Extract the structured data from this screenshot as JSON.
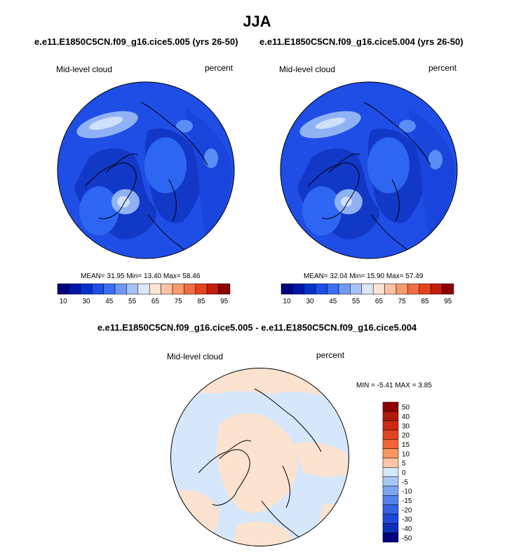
{
  "figure": {
    "season": "JJA",
    "diff_title": "e.e11.E1850C5CN.f09_g16.cice5.005 - e.e11.E1850C5CN.f09_g16.cice5.004"
  },
  "colors": {
    "ocean_left": "#1f4ee6",
    "land_dark": "#1238c8",
    "bright": "#2d66f2",
    "light": "#8fb2f5",
    "lightest": "#cfe0fb",
    "diff_pos": "#fbe3cf",
    "diff_neg": "#d7e7fb"
  },
  "chart_data": [
    {
      "type": "heatmap",
      "projection": "polar-stereographic",
      "title": "e.e11.E1850C5CN.f09_g16.cice5.005 (yrs 26-50)",
      "left_label": "Mid-level cloud",
      "right_label": "percent",
      "stats": "MEAN=  31.95  Min=  13.40  Max=  58.46",
      "colorbar": {
        "colors": [
          "#00007f",
          "#0015a8",
          "#0033cc",
          "#1f4ee6",
          "#3b6ff2",
          "#6f98f4",
          "#a6c2f6",
          "#dbe6f8",
          "#fde5d2",
          "#fbc2a4",
          "#f8996f",
          "#f26d45",
          "#e24420",
          "#c21e0c",
          "#8c0000"
        ],
        "tick_labels": [
          "10",
          "30",
          "45",
          "55",
          "65",
          "75",
          "85",
          "95"
        ]
      }
    },
    {
      "type": "heatmap",
      "projection": "polar-stereographic",
      "title": "e.e11.E1850C5CN.f09_g16.cice5.004 (yrs 26-50)",
      "left_label": "Mid-level cloud",
      "right_label": "percent",
      "stats": "MEAN=  32.04  Min=  15.90  Max=  57.49",
      "colorbar": {
        "colors": [
          "#00007f",
          "#0015a8",
          "#0033cc",
          "#1f4ee6",
          "#3b6ff2",
          "#6f98f4",
          "#a6c2f6",
          "#dbe6f8",
          "#fde5d2",
          "#fbc2a4",
          "#f8996f",
          "#f26d45",
          "#e24420",
          "#c21e0c",
          "#8c0000"
        ],
        "tick_labels": [
          "10",
          "30",
          "45",
          "55",
          "65",
          "75",
          "85",
          "95"
        ]
      }
    },
    {
      "type": "heatmap",
      "projection": "polar-stereographic",
      "left_label": "Mid-level cloud",
      "right_label": "percent",
      "stats": "MIN =  -5.41 MAX =   3.85",
      "colorbar": {
        "colors": [
          "#8c0000",
          "#b01a08",
          "#cc2a12",
          "#e2441f",
          "#f26535",
          "#f8965f",
          "#fbc6a3",
          "#d7e7fb",
          "#a8c6f5",
          "#7ca5f0",
          "#5581ea",
          "#3462e2",
          "#1e48d6",
          "#0f2fb8",
          "#00007f"
        ],
        "tick_labels": [
          "50",
          "40",
          "30",
          "20",
          "15",
          "10",
          "5",
          "0",
          "-5",
          "-10",
          "-15",
          "-20",
          "-30",
          "-40",
          "-50"
        ]
      }
    }
  ]
}
